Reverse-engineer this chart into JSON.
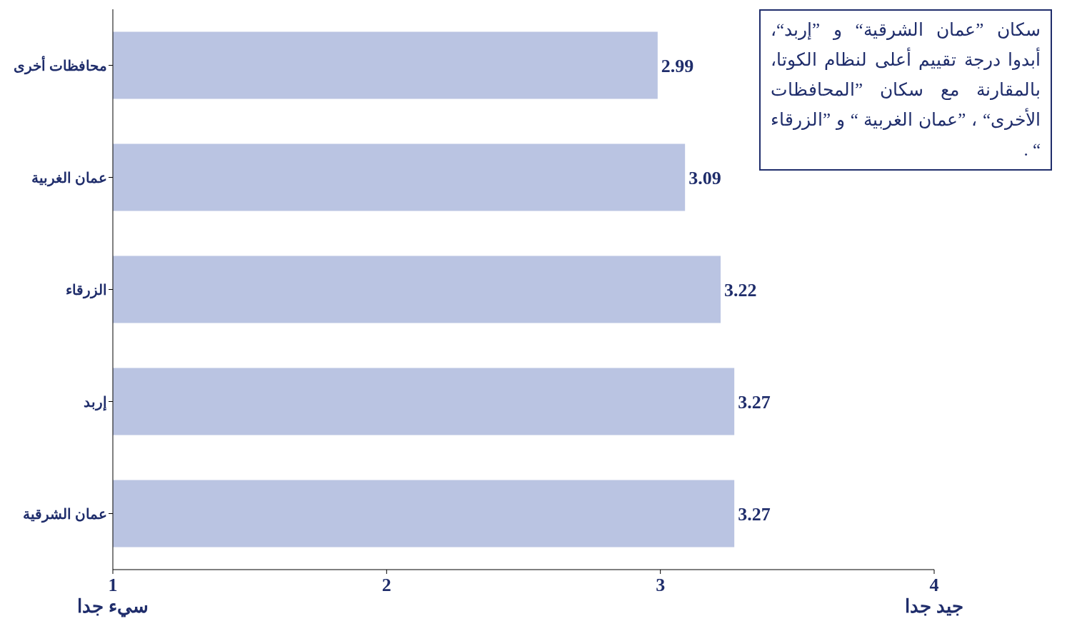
{
  "chart_data": {
    "type": "bar",
    "orientation": "horizontal",
    "categories": [
      "محافظات أخرى",
      "عمان الغربية",
      "الزرقاء",
      "إربد",
      "عمان الشرقية"
    ],
    "values": [
      2.99,
      3.09,
      3.22,
      3.27,
      3.27
    ],
    "color": "#bac4e2",
    "xlim": [
      1,
      4
    ],
    "xticks": [
      {
        "value": 1,
        "label": "1\nسيء جدا"
      },
      2,
      3,
      {
        "value": 4,
        "label": "4\nجيد جدا"
      }
    ],
    "data_labels": true,
    "grid": false,
    "annotations": [
      "سكان ”عمان الشرقية“ و ”إربد“، أبدوا درجة تقييم أعلى لنظام الكوتا، بالمقارنة مع سكان ”المحافظات الأخرى“ ، ”عمان الغربية “ و ”الزرقاء “ ."
    ]
  }
}
